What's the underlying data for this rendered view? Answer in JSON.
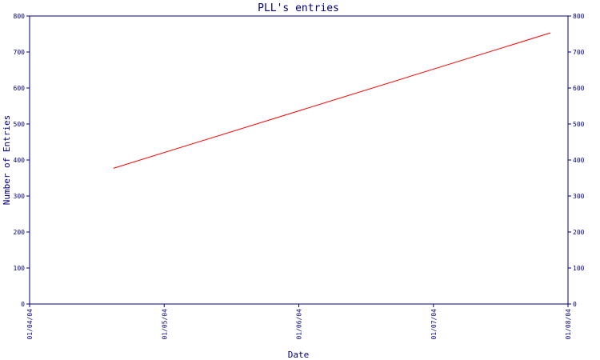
{
  "chart_data": {
    "type": "line",
    "title": "PLL's entries",
    "xlabel": "Date",
    "ylabel": "Number of Entries",
    "x_ticks": [
      "01/04/04",
      "01/05/04",
      "01/06/04",
      "01/07/04",
      "01/08/04"
    ],
    "y_ticks": [
      0,
      100,
      200,
      300,
      400,
      500,
      600,
      700,
      800
    ],
    "ylim": [
      0,
      800
    ],
    "xlim": [
      "2004-04-01",
      "2004-08-01"
    ],
    "grid": false,
    "series": [
      {
        "color": "#ff0000",
        "points": [
          {
            "x": "2004-04-20",
            "y": 377
          },
          {
            "x": "2004-07-28",
            "y": 753
          }
        ]
      }
    ],
    "axis_color": "#000080"
  }
}
